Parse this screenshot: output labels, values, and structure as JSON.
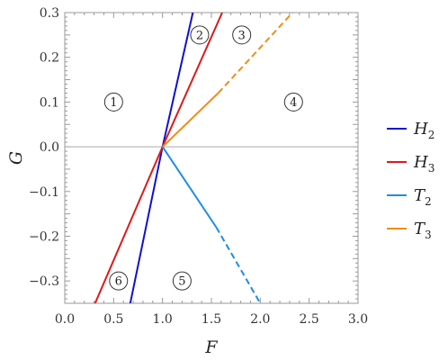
{
  "chart_data": {
    "type": "line",
    "xlabel": "F",
    "ylabel": "G",
    "xlim": [
      0,
      3
    ],
    "ylim": [
      -0.35,
      0.3
    ],
    "x_ticks": [
      "0.0",
      "0.5",
      "1.0",
      "1.5",
      "2.0",
      "2.5",
      "3.0"
    ],
    "y_ticks": [
      "−0.3",
      "−0.2",
      "−0.1",
      "0.0",
      "0.1",
      "0.2",
      "0.3"
    ],
    "grid": false,
    "zero_line": true,
    "legend_position": "right",
    "series": [
      {
        "name": "H",
        "sub": "2",
        "color": "#1010d0",
        "segments": [
          {
            "style": "solid",
            "points": [
              [
                0.67,
                -0.35
              ],
              [
                1.0,
                0.0
              ],
              [
                1.31,
                0.3
              ]
            ]
          }
        ]
      },
      {
        "name": "H",
        "sub": "3",
        "color": "#e01818",
        "segments": [
          {
            "style": "solid",
            "points": [
              [
                0.31,
                -0.35
              ],
              [
                1.0,
                0.0
              ],
              [
                1.61,
                0.3
              ]
            ]
          }
        ]
      },
      {
        "name": "T",
        "sub": "2",
        "color": "#1c8ce8",
        "segments": [
          {
            "style": "solid",
            "points": [
              [
                1.0,
                0.0
              ],
              [
                1.55,
                -0.18
              ]
            ]
          },
          {
            "style": "dashed",
            "points": [
              [
                1.55,
                -0.18
              ],
              [
                2.0,
                -0.35
              ]
            ]
          }
        ]
      },
      {
        "name": "T",
        "sub": "3",
        "color": "#f08c1c",
        "segments": [
          {
            "style": "solid",
            "points": [
              [
                1.0,
                0.0
              ],
              [
                1.57,
                0.12
              ]
            ]
          },
          {
            "style": "dashed",
            "points": [
              [
                1.57,
                0.12
              ],
              [
                2.33,
                0.3
              ]
            ]
          }
        ]
      }
    ],
    "annotations": [
      {
        "text": "1",
        "x": 0.5,
        "y": 0.1
      },
      {
        "text": "2",
        "x": 1.38,
        "y": 0.25
      },
      {
        "text": "3",
        "x": 1.81,
        "y": 0.25
      },
      {
        "text": "4",
        "x": 2.34,
        "y": 0.1
      },
      {
        "text": "5",
        "x": 1.2,
        "y": -0.3
      },
      {
        "text": "6",
        "x": 0.55,
        "y": -0.3
      }
    ]
  }
}
